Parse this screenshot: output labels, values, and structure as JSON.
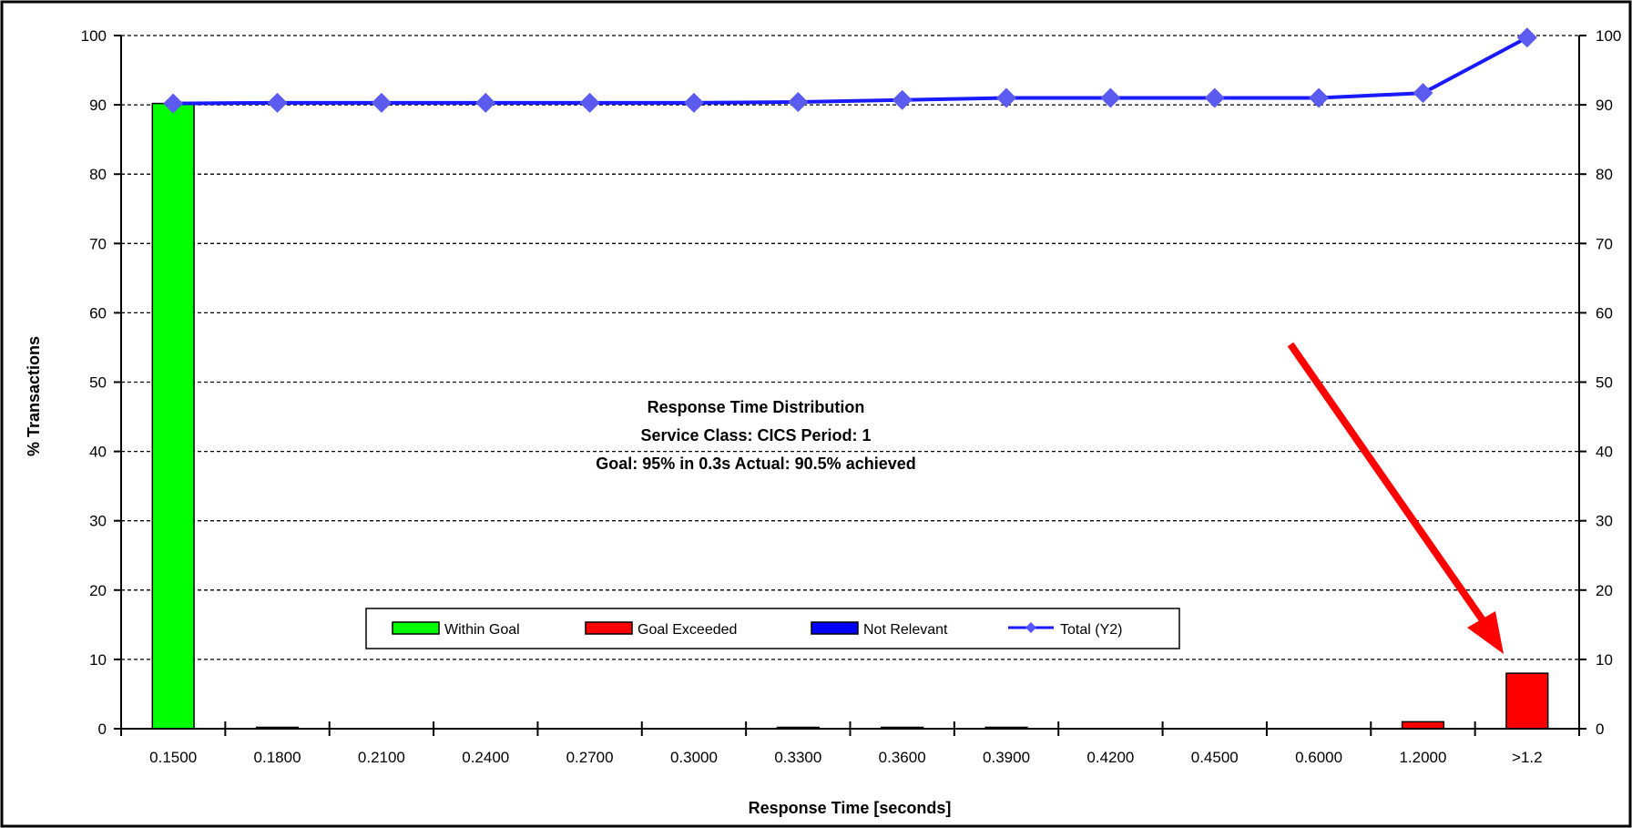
{
  "chart_data": {
    "type": "bar",
    "title": "Response Time Distribution",
    "subtitle_lines": [
      "Service Class: CICS Period: 1",
      "Goal: 95% in 0.3s  Actual: 90.5% achieved"
    ],
    "xlabel": "Response Time [seconds]",
    "ylabel": "% Transactions",
    "ylim": [
      0,
      100
    ],
    "y2lim": [
      0,
      100
    ],
    "yticks": [
      "0",
      "10",
      "20",
      "30",
      "40",
      "50",
      "60",
      "70",
      "80",
      "90",
      "100"
    ],
    "y2ticks": [
      "0",
      "10",
      "20",
      "30",
      "40",
      "50",
      "60",
      "70",
      "80",
      "90",
      "100"
    ],
    "categories": [
      "0.1500",
      "0.1800",
      "0.2100",
      "0.2400",
      "0.2700",
      "0.3000",
      "0.3300",
      "0.3600",
      "0.3900",
      "0.4200",
      "0.4500",
      "0.6000",
      "1.2000",
      ">1.2"
    ],
    "series": [
      {
        "name": "Within Goal",
        "kind": "bar",
        "color": "#00ff00",
        "values": [
          90.2,
          0,
          0,
          0,
          0,
          0,
          0,
          0,
          0,
          0,
          0,
          0,
          0,
          0
        ]
      },
      {
        "name": "Goal Exceeded",
        "kind": "bar",
        "color": "#ff0000",
        "values": [
          0,
          0,
          0,
          0,
          0,
          0,
          0,
          0,
          0,
          0,
          0,
          0,
          1,
          8
        ]
      },
      {
        "name": "Not Relevant",
        "kind": "bar",
        "color": "#0000ff",
        "values": [
          0,
          0.2,
          0,
          0,
          0,
          0,
          0.2,
          0.2,
          0.2,
          0,
          0,
          0,
          0,
          0
        ]
      },
      {
        "name": "Total (Y2)",
        "kind": "line",
        "axis": "y2",
        "color": "#1a1aff",
        "values": [
          90.2,
          90.3,
          90.3,
          90.3,
          90.3,
          90.3,
          90.4,
          90.7,
          91.0,
          91.0,
          91.0,
          91.0,
          91.7,
          99.7
        ]
      }
    ],
    "grid": true,
    "legend_position": "bottom-center",
    "annotation": {
      "type": "arrow",
      "color": "#ff0000",
      "points_to": ">1.2"
    }
  }
}
